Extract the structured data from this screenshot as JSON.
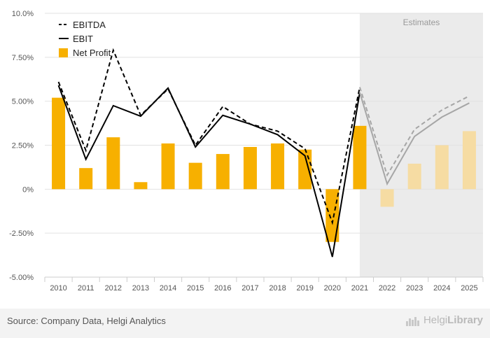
{
  "chart_data": {
    "type": "bar",
    "categories": [
      "2010",
      "2011",
      "2012",
      "2013",
      "2014",
      "2015",
      "2016",
      "2017",
      "2018",
      "2019",
      "2020",
      "2021",
      "2022",
      "2023",
      "2024",
      "2025"
    ],
    "series": [
      {
        "name": "EBITDA",
        "kind": "line",
        "style": "dashed",
        "values": [
          6.1,
          2.2,
          7.9,
          4.2,
          5.7,
          2.5,
          4.7,
          3.7,
          3.3,
          2.3,
          -1.9,
          5.8,
          0.8,
          3.4,
          4.5,
          5.3
        ]
      },
      {
        "name": "EBIT",
        "kind": "line",
        "style": "solid",
        "values": [
          5.9,
          1.7,
          4.75,
          4.15,
          5.75,
          2.4,
          4.2,
          3.7,
          3.1,
          1.9,
          -3.85,
          5.5,
          0.3,
          3.0,
          4.1,
          4.9
        ]
      },
      {
        "name": "Net Profit",
        "kind": "bar",
        "values": [
          5.2,
          1.2,
          2.95,
          0.4,
          2.6,
          1.5,
          2.0,
          2.4,
          2.6,
          2.25,
          -3.0,
          3.6,
          -1.0,
          1.45,
          2.5,
          3.3
        ]
      }
    ],
    "estimate_label": "Estimates",
    "estimate_from": "2022",
    "ylim": [
      -5,
      10
    ],
    "yticks": [
      -5,
      -2.5,
      0,
      2.5,
      5,
      7.5,
      10
    ],
    "ytick_labels": [
      "-5.00%",
      "-2.50%",
      "0%",
      "2.50%",
      "5.00%",
      "7.50%",
      "10.0%"
    ],
    "legend_position": "top-left",
    "grid": true,
    "colors": {
      "bar": "#F7B000",
      "bar_estimate": "#F6DCA3",
      "line": "#000000",
      "line_estimate": "#A6A6A6",
      "estimate_bg": "#EBEBEB"
    }
  },
  "footer": {
    "source": "Source: Company Data, Helgi Analytics",
    "brand_light": "Helgi",
    "brand_bold": "Library"
  }
}
